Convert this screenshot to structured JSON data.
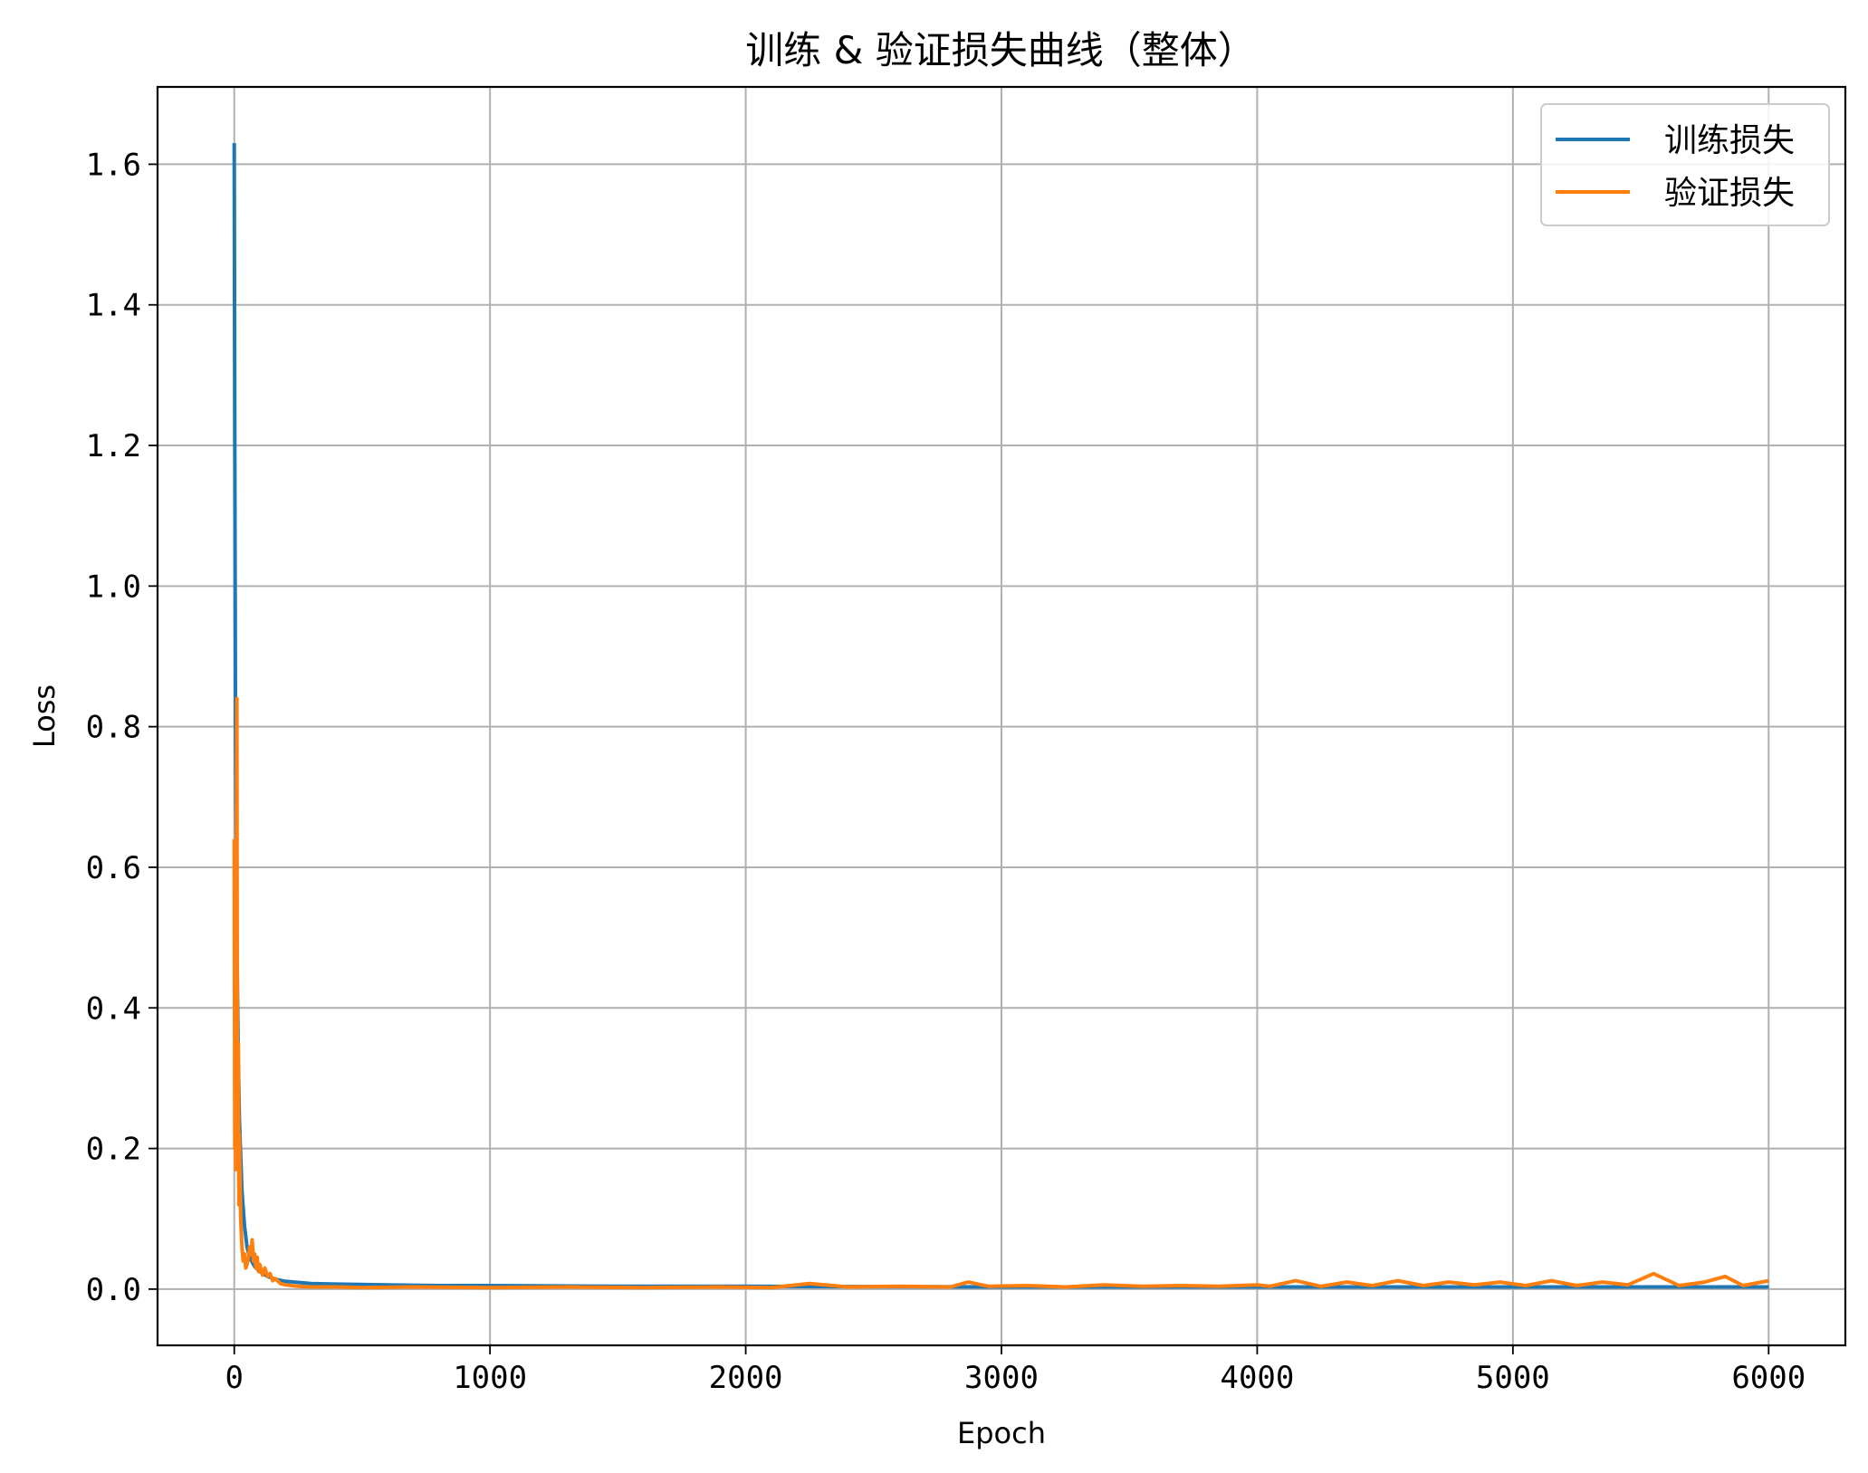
{
  "chart_data": {
    "type": "line",
    "title": "训练 & 验证损失曲线（整体）",
    "xlabel": "Epoch",
    "ylabel": "Loss",
    "xlim": [
      -300,
      6300
    ],
    "ylim": [
      -0.08,
      1.71
    ],
    "xticks": [
      0,
      1000,
      2000,
      3000,
      4000,
      5000,
      6000
    ],
    "xtick_labels": [
      "0",
      "1000",
      "2000",
      "3000",
      "4000",
      "5000",
      "6000"
    ],
    "yticks": [
      0.0,
      0.2,
      0.4,
      0.6,
      0.8,
      1.0,
      1.2,
      1.4,
      1.6
    ],
    "ytick_labels": [
      "0.0",
      "0.2",
      "0.4",
      "0.6",
      "0.8",
      "1.0",
      "1.2",
      "1.4",
      "1.6"
    ],
    "grid": true,
    "legend_position": "top-right",
    "series": [
      {
        "name": "训练损失",
        "color": "#1f77b4",
        "x": [
          0,
          2,
          5,
          10,
          15,
          20,
          30,
          40,
          50,
          60,
          80,
          100,
          130,
          160,
          200,
          300,
          400,
          600,
          800,
          1000,
          1500,
          2000,
          3000,
          4000,
          5000,
          6000
        ],
        "y": [
          1.63,
          1.2,
          0.8,
          0.5,
          0.34,
          0.24,
          0.14,
          0.09,
          0.06,
          0.045,
          0.032,
          0.025,
          0.018,
          0.014,
          0.011,
          0.008,
          0.007,
          0.006,
          0.005,
          0.005,
          0.004,
          0.004,
          0.003,
          0.003,
          0.003,
          0.003
        ]
      },
      {
        "name": "验证损失",
        "color": "#ff7f0e",
        "x": [
          0,
          2,
          4,
          6,
          8,
          10,
          12,
          14,
          16,
          18,
          20,
          25,
          30,
          35,
          40,
          45,
          50,
          55,
          60,
          65,
          70,
          75,
          80,
          85,
          90,
          95,
          100,
          110,
          120,
          130,
          140,
          150,
          160,
          180,
          200,
          250,
          300,
          400,
          500,
          700,
          1000,
          1300,
          1600,
          1900,
          2100,
          2250,
          2400,
          2600,
          2800,
          2870,
          2950,
          3100,
          3250,
          3400,
          3550,
          3700,
          3850,
          4000,
          4050,
          4150,
          4250,
          4350,
          4450,
          4550,
          4650,
          4750,
          4850,
          4950,
          5050,
          5150,
          5250,
          5350,
          5450,
          5550,
          5650,
          5750,
          5830,
          5900,
          6000
        ],
        "y": [
          0.64,
          0.2,
          0.45,
          0.17,
          0.55,
          0.84,
          0.3,
          0.2,
          0.35,
          0.12,
          0.22,
          0.1,
          0.06,
          0.04,
          0.05,
          0.03,
          0.035,
          0.045,
          0.06,
          0.05,
          0.07,
          0.04,
          0.05,
          0.03,
          0.045,
          0.025,
          0.035,
          0.02,
          0.03,
          0.018,
          0.022,
          0.012,
          0.015,
          0.008,
          0.006,
          0.004,
          0.003,
          0.003,
          0.002,
          0.003,
          0.002,
          0.003,
          0.002,
          0.003,
          0.002,
          0.008,
          0.003,
          0.004,
          0.003,
          0.01,
          0.004,
          0.005,
          0.003,
          0.006,
          0.004,
          0.005,
          0.004,
          0.006,
          0.004,
          0.012,
          0.004,
          0.01,
          0.005,
          0.012,
          0.005,
          0.01,
          0.006,
          0.01,
          0.005,
          0.012,
          0.005,
          0.01,
          0.006,
          0.022,
          0.005,
          0.01,
          0.018,
          0.005,
          0.012
        ]
      }
    ]
  }
}
